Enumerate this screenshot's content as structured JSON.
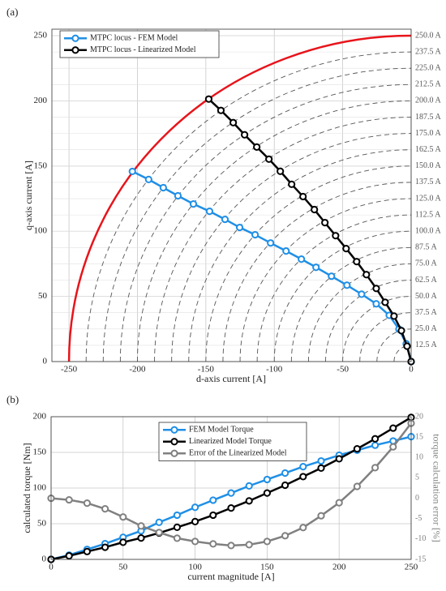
{
  "chart_data": [
    {
      "type": "line",
      "panel_label": "(a)",
      "xlabel": "d-axis current [A]",
      "ylabel": "q-axis current [A]",
      "xlim": [
        -262.5,
        0
      ],
      "ylim": [
        0,
        255
      ],
      "y2lim": [
        0,
        255
      ],
      "xticks": [
        -250,
        -200,
        -150,
        -100,
        -50,
        0
      ],
      "yticks": [
        0,
        50,
        100,
        150,
        200,
        250
      ],
      "y2ticks": [
        {
          "value": 12.5,
          "label": "12.5 A"
        },
        {
          "value": 25,
          "label": "25.0 A"
        },
        {
          "value": 37.5,
          "label": "37.5 A"
        },
        {
          "value": 50,
          "label": "50.0 A"
        },
        {
          "value": 62.5,
          "label": "62.5 A"
        },
        {
          "value": 75,
          "label": "75.0 A"
        },
        {
          "value": 87.5,
          "label": "87.5 A"
        },
        {
          "value": 100,
          "label": "100.0 A"
        },
        {
          "value": 112.5,
          "label": "112.5 A"
        },
        {
          "value": 125,
          "label": "125.0 A"
        },
        {
          "value": 137.5,
          "label": "137.5 A"
        },
        {
          "value": 150,
          "label": "150.0 A"
        },
        {
          "value": 162.5,
          "label": "162.5 A"
        },
        {
          "value": 175,
          "label": "175.0 A"
        },
        {
          "value": 187.5,
          "label": "187.5 A"
        },
        {
          "value": 200,
          "label": "200.0 A"
        },
        {
          "value": 212.5,
          "label": "212.5 A"
        },
        {
          "value": 225,
          "label": "225.0 A"
        },
        {
          "value": 237.5,
          "label": "237.5 A"
        },
        {
          "value": 250,
          "label": "250.0 A"
        }
      ],
      "circles": true,
      "limit_color": "#e8141b",
      "grid": true,
      "legend": "upper left",
      "series": [
        {
          "name": "MTPC locus - FEM Model",
          "color": "#1f8fe6",
          "x": [
            -203.7,
            -191.8,
            -181.1,
            -170.4,
            -159.1,
            -147.3,
            -136,
            -125.3,
            -114,
            -102.7,
            -91.4,
            -80.2,
            -69.5,
            -58.2,
            -46.9,
            -36.2,
            -25.5,
            -16,
            -8.9,
            -3.6,
            0
          ],
          "values": [
            145.9,
            139.7,
            133.4,
            127.2,
            120.9,
            115.3,
            109.1,
            102.9,
            97.3,
            91,
            84.8,
            78.6,
            72.3,
            65.5,
            58.6,
            51.7,
            44.3,
            35.5,
            24.9,
            13.7,
            0
          ]
        },
        {
          "name": "MTPC locus - Linearized Model",
          "color": "#000000",
          "x": [
            -147.9,
            -139,
            -130,
            -121.7,
            -112.8,
            -103.9,
            -95.6,
            -87.3,
            -79,
            -70.7,
            -63,
            -55.2,
            -47.5,
            -39.8,
            -32.7,
            -25.5,
            -19,
            -12.5,
            -7.1,
            -3,
            0
          ],
          "values": [
            201.4,
            192.7,
            183.3,
            174,
            164.6,
            155.3,
            146,
            136,
            126.6,
            116.6,
            106.6,
            96.6,
            86.7,
            76.7,
            66.7,
            56.1,
            45.5,
            34.9,
            23.7,
            11.8,
            0
          ]
        }
      ]
    },
    {
      "type": "line",
      "panel_label": "(b)",
      "xlabel": "current magnitude [A]",
      "ylabel": "calculated torque [Nm]",
      "y2label": "torque calculation error [%]",
      "xlim": [
        0,
        250
      ],
      "ylim": [
        0,
        200
      ],
      "y2lim": [
        -15,
        20
      ],
      "xticks": [
        0,
        50,
        100,
        150,
        200,
        250
      ],
      "yticks": [
        0,
        50,
        100,
        150,
        200
      ],
      "y2ticks": [
        -15,
        -10,
        -5,
        0,
        5,
        10,
        15,
        20
      ],
      "grid": true,
      "legend": "upper center",
      "y2color": "#808080",
      "x": [
        0,
        12.5,
        25,
        37.5,
        50,
        62.5,
        75,
        87.5,
        100,
        112.5,
        125,
        137.5,
        150,
        162.5,
        175,
        187.5,
        200,
        212.5,
        225,
        237.5,
        250
      ],
      "series": [
        {
          "name": "FEM Model Torque",
          "color": "#1f8fe6",
          "values": [
            0,
            6,
            14,
            22,
            31,
            40,
            52,
            62,
            73,
            83,
            93,
            103,
            112,
            121,
            130,
            138,
            146,
            153,
            160,
            166,
            172
          ]
        },
        {
          "name": "Linearized Model Torque",
          "color": "#000000",
          "values": [
            0,
            5,
            11,
            17,
            24,
            30,
            37,
            45,
            53,
            62,
            72,
            82,
            93,
            104,
            116,
            128,
            141,
            155,
            169,
            184,
            199
          ]
        },
        {
          "name": "Error of the Linearized Model",
          "color": "#808080",
          "axis": "y2",
          "values": [
            0,
            -0.4,
            -1.2,
            -2.6,
            -4.6,
            -6.8,
            -8.4,
            -9.8,
            -10.6,
            -11.2,
            -11.6,
            -11.4,
            -10.6,
            -9.2,
            -7.2,
            -4.3,
            -1.1,
            2.9,
            7.5,
            12.6,
            18.4
          ]
        }
      ]
    }
  ]
}
